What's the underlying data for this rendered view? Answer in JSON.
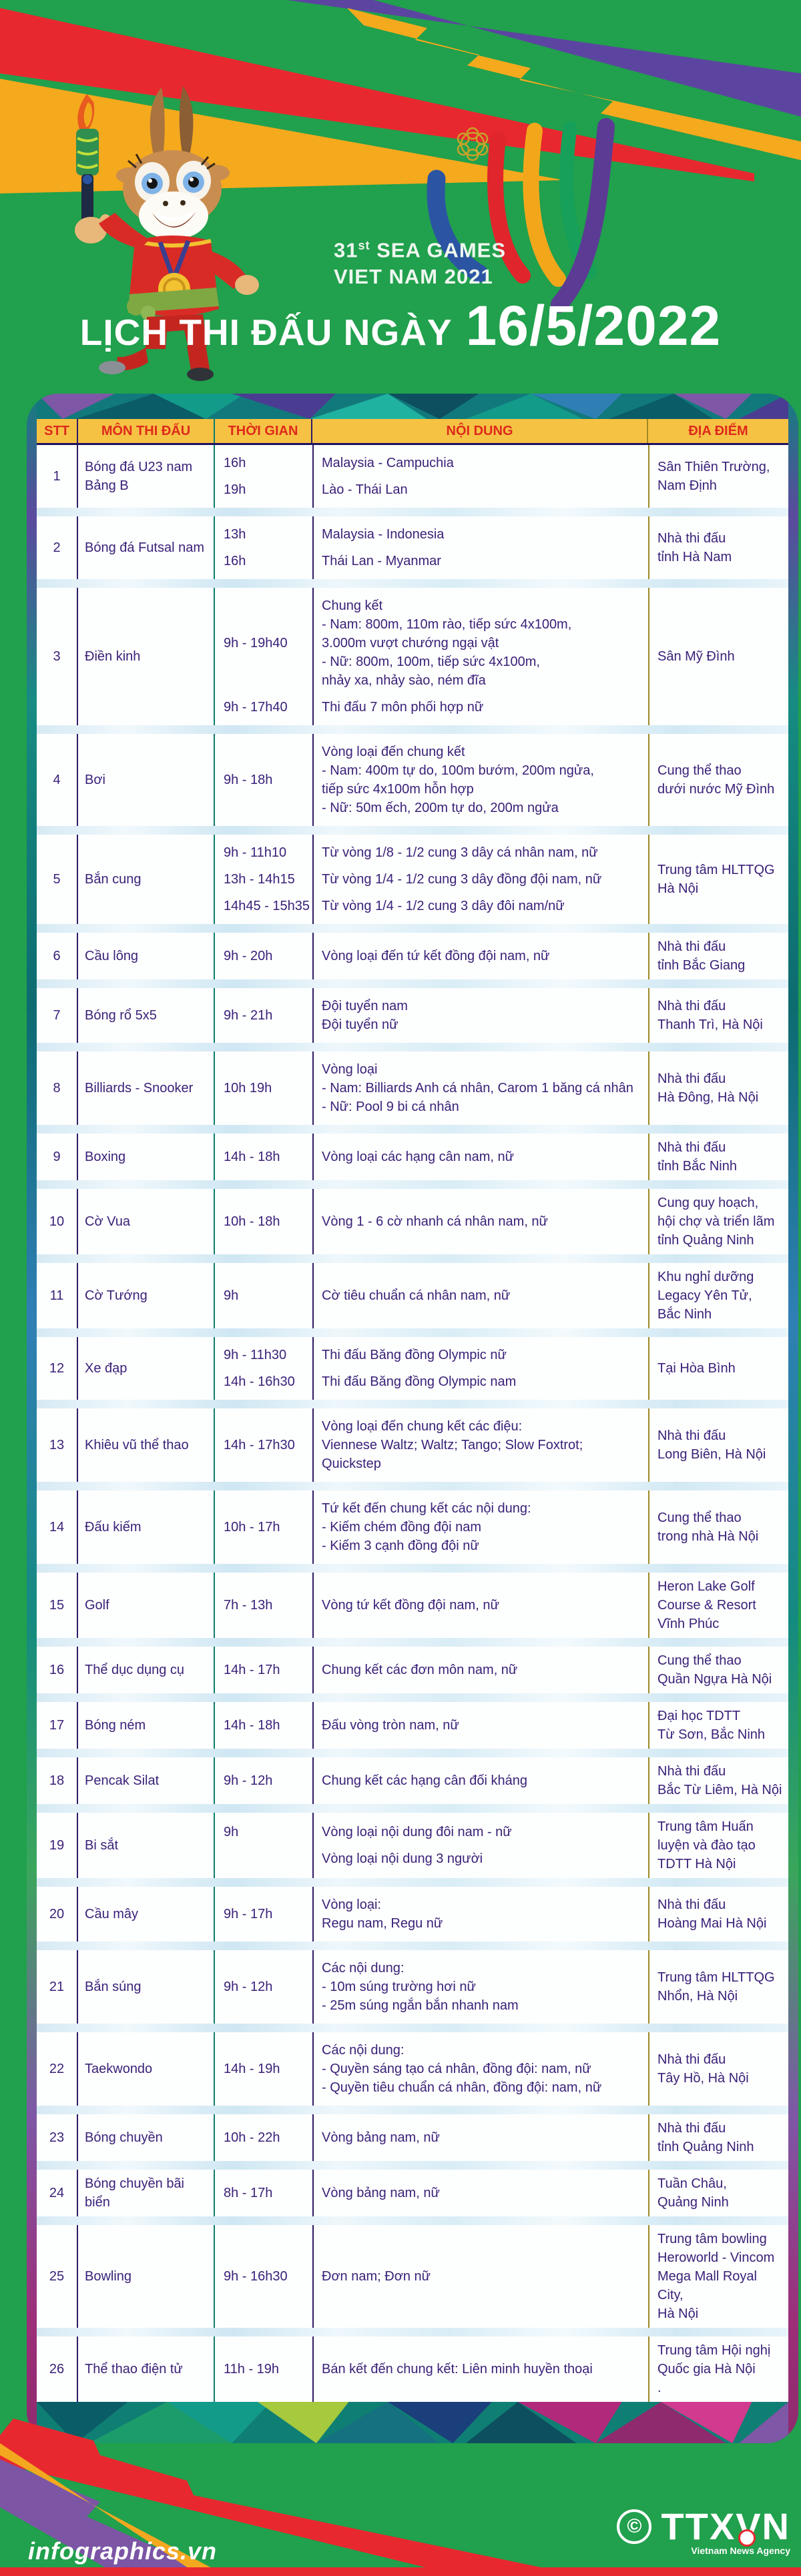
{
  "header": {
    "logo_line1_num": "31",
    "logo_line1_sup": "st",
    "logo_line1_rest": " SEA GAMES",
    "logo_line2": "VIET NAM 2021",
    "title_prefix": "LỊCH THI ĐẤU NGÀY",
    "title_date": "16/5/2022"
  },
  "colors": {
    "background_green": "#21a04d",
    "band_red": "#e8282f",
    "band_yellow": "#f5a91d",
    "band_purple": "#5c45a0",
    "header_yellow": "#f6c244",
    "header_text_red": "#de2a1b",
    "table_text_purple": "#3a2178"
  },
  "table": {
    "columns": [
      "STT",
      "MÔN THI ĐẤU",
      "THỜI GIAN",
      "NỘI DUNG",
      "ĐỊA ĐIỂM"
    ],
    "rows": [
      {
        "stt": "1",
        "sport": [
          "Bóng đá U23 nam",
          "Bảng B"
        ],
        "blocks": [
          {
            "time": "16h",
            "lines": [
              "Malaysia - Campuchia"
            ]
          },
          {
            "time": "19h",
            "lines": [
              "Lào - Thái Lan"
            ]
          }
        ],
        "venue": [
          "Sân Thiên Trường,",
          "Nam Định"
        ]
      },
      {
        "stt": "2",
        "sport": [
          "Bóng đá Futsal nam"
        ],
        "blocks": [
          {
            "time": "13h",
            "lines": [
              "Malaysia - Indonesia"
            ]
          },
          {
            "time": "16h",
            "lines": [
              "Thái Lan - Myanmar"
            ]
          }
        ],
        "venue": [
          "Nhà thi đấu",
          "tỉnh Hà Nam"
        ]
      },
      {
        "stt": "3",
        "sport": [
          "Điền kinh"
        ],
        "blocks": [
          {
            "time": "9h - 19h40",
            "lines": [
              "Chung kết",
              "- Nam: 800m, 110m rào, tiếp sức 4x100m,",
              "3.000m vượt chướng ngại vật",
              "- Nữ: 800m, 100m, tiếp sức 4x100m,",
              "nhảy xa, nhảy sào, ném đĩa"
            ]
          },
          {
            "time": "9h - 17h40",
            "lines": [
              "Thi đấu 7 môn phối hợp nữ"
            ]
          }
        ],
        "venue": [
          "Sân Mỹ Đình"
        ]
      },
      {
        "stt": "4",
        "sport": [
          "Bơi"
        ],
        "blocks": [
          {
            "time": "9h - 18h",
            "lines": [
              "Vòng loại đến chung kết",
              "- Nam: 400m tự do, 100m bướm, 200m ngửa,",
              "tiếp sức 4x100m hỗn hợp",
              "- Nữ: 50m ếch, 200m tự do, 200m ngửa"
            ]
          }
        ],
        "venue": [
          "Cung thể thao",
          "dưới nước Mỹ Đình"
        ]
      },
      {
        "stt": "5",
        "sport": [
          "Bắn cung"
        ],
        "blocks": [
          {
            "time": "9h - 11h10",
            "lines": [
              "Từ vòng 1/8 - 1/2 cung 3 dây cá nhân nam, nữ"
            ]
          },
          {
            "time": "13h - 14h15",
            "lines": [
              "Từ vòng 1/4 - 1/2 cung 3 dây đồng đội nam, nữ"
            ]
          },
          {
            "time": "14h45 - 15h35",
            "lines": [
              "Từ vòng 1/4 - 1/2 cung 3 dây đôi nam/nữ"
            ]
          }
        ],
        "venue": [
          "Trung tâm HLTTQG",
          "Hà Nội"
        ]
      },
      {
        "stt": "6",
        "sport": [
          "Cầu lông"
        ],
        "blocks": [
          {
            "time": "9h - 20h",
            "lines": [
              "Vòng loại đến tứ kết đồng đội nam, nữ"
            ]
          }
        ],
        "venue": [
          "Nhà thi đấu",
          "tỉnh Bắc Giang"
        ]
      },
      {
        "stt": "7",
        "sport": [
          "Bóng rổ 5x5"
        ],
        "blocks": [
          {
            "time": "9h - 21h",
            "lines": [
              "Đội tuyển nam",
              "Đội tuyển nữ"
            ]
          }
        ],
        "venue": [
          "Nhà thi đấu",
          "Thanh Trì, Hà Nội"
        ]
      },
      {
        "stt": "8",
        "sport": [
          "Billiards - Snooker"
        ],
        "blocks": [
          {
            "time": "10h 19h",
            "lines": [
              "Vòng loại",
              "- Nam: Billiards Anh cá nhân, Carom 1 băng cá nhân",
              "- Nữ: Pool 9 bi cá nhân"
            ]
          }
        ],
        "venue": [
          "Nhà thi đấu",
          "Hà Đông, Hà Nội"
        ]
      },
      {
        "stt": "9",
        "sport": [
          "Boxing"
        ],
        "blocks": [
          {
            "time": "14h - 18h",
            "lines": [
              "Vòng loại các hạng cân nam, nữ"
            ]
          }
        ],
        "venue": [
          "Nhà thi đấu",
          "tỉnh Bắc Ninh"
        ]
      },
      {
        "stt": "10",
        "sport": [
          "Cờ Vua"
        ],
        "blocks": [
          {
            "time": "10h - 18h",
            "lines": [
              "Vòng 1 - 6 cờ nhanh cá nhân nam, nữ"
            ]
          }
        ],
        "venue": [
          "Cung quy hoạch,",
          "hội chợ và triển lãm",
          "tỉnh Quảng Ninh"
        ]
      },
      {
        "stt": "11",
        "sport": [
          "Cờ Tướng"
        ],
        "blocks": [
          {
            "time": "9h",
            "lines": [
              "Cờ tiêu chuẩn cá nhân nam, nữ"
            ]
          }
        ],
        "venue": [
          "Khu nghỉ dưỡng",
          "Legacy Yên Tử,",
          "Bắc Ninh"
        ]
      },
      {
        "stt": "12",
        "sport": [
          "Xe đạp"
        ],
        "blocks": [
          {
            "time": "9h - 11h30",
            "lines": [
              "Thi đấu Băng đồng Olympic nữ"
            ]
          },
          {
            "time": "14h - 16h30",
            "lines": [
              "Thi đấu Băng đồng Olympic nam"
            ]
          }
        ],
        "venue": [
          "Tại Hòa Bình"
        ]
      },
      {
        "stt": "13",
        "sport": [
          "Khiêu vũ thể thao"
        ],
        "blocks": [
          {
            "time": "14h - 17h30",
            "lines": [
              "Vòng loại đến chung kết các điệu:",
              "Viennese Waltz; Waltz; Tango; Slow Foxtrot; Quickstep"
            ]
          }
        ],
        "venue": [
          "Nhà thi đấu",
          "Long Biên, Hà Nội"
        ]
      },
      {
        "stt": "14",
        "sport": [
          "Đấu kiếm"
        ],
        "blocks": [
          {
            "time": "10h - 17h",
            "lines": [
              "Tứ kết đến chung kết các nội dung:",
              "- Kiếm chém đồng đội nam",
              "- Kiếm 3 cạnh đồng đội nữ"
            ]
          }
        ],
        "venue": [
          "Cung thể thao",
          "trong nhà Hà Nội"
        ]
      },
      {
        "stt": "15",
        "sport": [
          "Golf"
        ],
        "blocks": [
          {
            "time": "7h - 13h",
            "lines": [
              "Vòng tứ kết đồng đội nam, nữ"
            ]
          }
        ],
        "venue": [
          "Heron Lake Golf",
          "Course & Resort",
          "Vĩnh Phúc"
        ]
      },
      {
        "stt": "16",
        "sport": [
          "Thể dục dụng cụ"
        ],
        "blocks": [
          {
            "time": "14h - 17h",
            "lines": [
              "Chung kết các đơn môn nam, nữ"
            ]
          }
        ],
        "venue": [
          "Cung thể thao",
          "Quần Ngựa Hà Nội"
        ]
      },
      {
        "stt": "17",
        "sport": [
          "Bóng ném"
        ],
        "blocks": [
          {
            "time": "14h - 18h",
            "lines": [
              "Đấu vòng tròn nam, nữ"
            ]
          }
        ],
        "venue": [
          "Đại học TDTT",
          "Từ Sơn, Bắc Ninh"
        ]
      },
      {
        "stt": "18",
        "sport": [
          "Pencak Silat"
        ],
        "blocks": [
          {
            "time": "9h - 12h",
            "lines": [
              "Chung kết các hạng cân đối kháng"
            ]
          }
        ],
        "venue": [
          "Nhà thi đấu",
          "Bắc Từ Liêm, Hà Nội"
        ]
      },
      {
        "stt": "19",
        "sport": [
          "Bi sắt"
        ],
        "blocks": [
          {
            "time": "9h",
            "lines": [
              "Vòng loại nội dung đôi nam - nữ"
            ]
          },
          {
            "time": "",
            "lines": [
              "Vòng loại nội dung 3 người"
            ]
          }
        ],
        "venue": [
          "Trung tâm Huấn",
          "luyện và đào tạo",
          "TDTT Hà Nội"
        ]
      },
      {
        "stt": "20",
        "sport": [
          "Cầu mây"
        ],
        "blocks": [
          {
            "time": "9h - 17h",
            "lines": [
              "Vòng loại:",
              "Regu nam, Regu nữ"
            ]
          }
        ],
        "venue": [
          "Nhà thi đấu",
          "Hoàng Mai Hà Nội"
        ]
      },
      {
        "stt": "21",
        "sport": [
          "Bắn súng"
        ],
        "blocks": [
          {
            "time": "9h - 12h",
            "lines": [
              "Các nội dung:",
              "- 10m súng trường hơi nữ",
              "- 25m súng ngắn bắn nhanh nam"
            ]
          }
        ],
        "venue": [
          "Trung tâm HLTTQG",
          "Nhổn, Hà Nội"
        ]
      },
      {
        "stt": "22",
        "sport": [
          "Taekwondo"
        ],
        "blocks": [
          {
            "time": "14h - 19h",
            "lines": [
              "Các nội dung:",
              "- Quyền sáng tạo cá nhân, đồng đội: nam, nữ",
              "- Quyền tiêu chuẩn cá nhân, đồng đội: nam, nữ"
            ]
          }
        ],
        "venue": [
          "Nhà thi đấu",
          "Tây Hồ, Hà Nội"
        ]
      },
      {
        "stt": "23",
        "sport": [
          "Bóng chuyền"
        ],
        "blocks": [
          {
            "time": "10h - 22h",
            "lines": [
              "Vòng bảng nam, nữ"
            ]
          }
        ],
        "venue": [
          "Nhà thi đấu",
          "tỉnh Quảng Ninh"
        ]
      },
      {
        "stt": "24",
        "sport": [
          "Bóng chuyền bãi biển"
        ],
        "blocks": [
          {
            "time": "8h - 17h",
            "lines": [
              "Vòng bảng nam, nữ"
            ]
          }
        ],
        "venue": [
          "Tuần Châu,",
          "Quảng Ninh"
        ]
      },
      {
        "stt": "25",
        "sport": [
          "Bowling"
        ],
        "blocks": [
          {
            "time": "9h - 16h30",
            "lines": [
              "Đơn nam; Đơn nữ"
            ]
          }
        ],
        "venue": [
          "Trung tâm bowling",
          "Heroworld - Vincom",
          "Mega Mall Royal City,",
          "Hà Nội"
        ]
      },
      {
        "stt": "26",
        "sport": [
          "Thể thao điện tử"
        ],
        "blocks": [
          {
            "time": "11h - 19h",
            "lines": [
              "Bán kết đến chung kết: Liên minh huyền thoại"
            ]
          }
        ],
        "venue": [
          "Trung tâm Hội nghị",
          "Quốc gia Hà Nội",
          "."
        ]
      }
    ]
  },
  "footer": {
    "site": "infographics.vn",
    "copyright_symbol": "©",
    "agency": "TTXVN",
    "agency_sub": "Vietnam News Agency"
  }
}
